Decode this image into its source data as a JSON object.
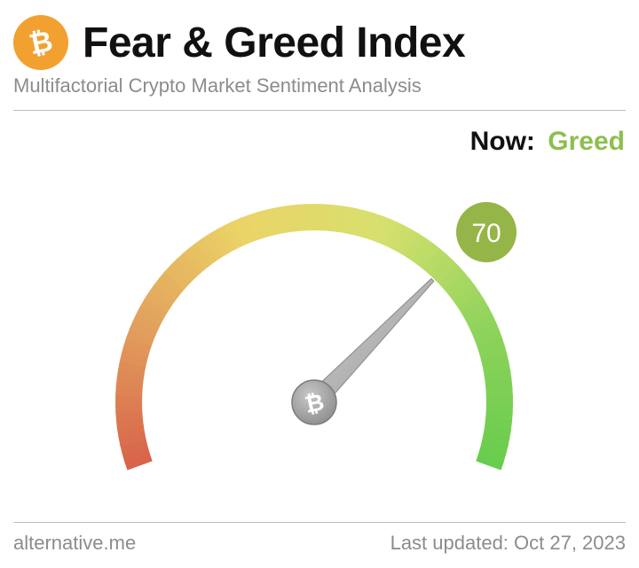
{
  "header": {
    "title": "Fear & Greed Index",
    "subtitle": "Multifactorial Crypto Market Sentiment Analysis",
    "logo_icon": "bitcoin-icon",
    "logo_color": "#f2a02f"
  },
  "status": {
    "label": "Now:",
    "classification": "Greed",
    "classification_color": "#8cbf4e"
  },
  "gauge": {
    "value": 70,
    "value_text": "70",
    "min": 0,
    "max": 100,
    "badge_color": "#96b548",
    "hub_icon": "bitcoin-icon",
    "colors": [
      "#d8624b",
      "#e2a05c",
      "#ebd467",
      "#d6e06d",
      "#8fd35c",
      "#67cc4c"
    ]
  },
  "footer": {
    "source": "alternative.me",
    "updated": "Last updated: Oct 27, 2023"
  }
}
